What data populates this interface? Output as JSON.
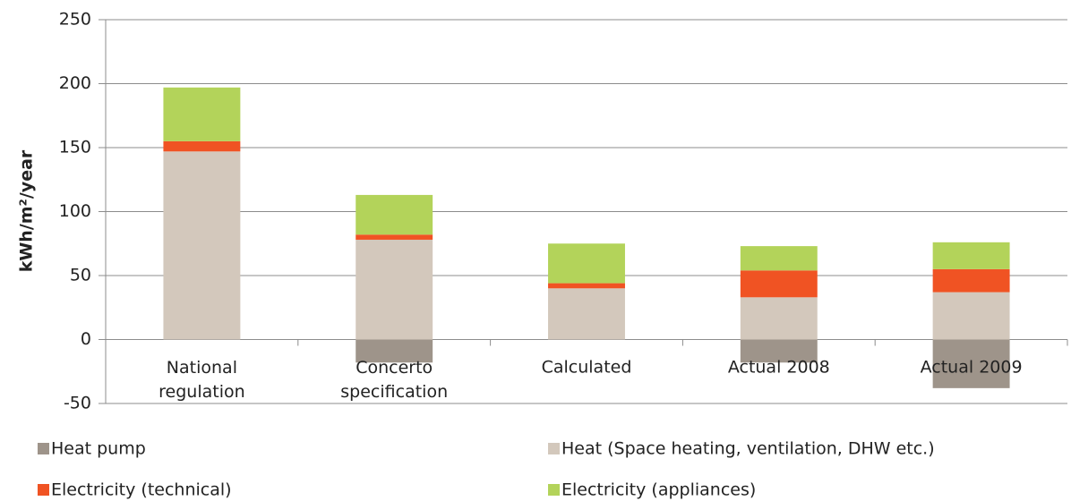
{
  "chart_data": {
    "type": "stacked_bar",
    "y_label": "kWh/m²/year",
    "categories": [
      "National regulation",
      "Concerto specification",
      "Calculated",
      "Actual 2008",
      "Actual 2009"
    ],
    "series": [
      {
        "name": "Heat pump",
        "color": "#9e948a",
        "values": [
          0,
          -18,
          0,
          -18,
          -38
        ]
      },
      {
        "name": "Heat (Space heating, ventilation, DHW etc.)",
        "color": "#d3c8bc",
        "values": [
          147,
          78,
          40,
          33,
          37
        ]
      },
      {
        "name": "Electricity (technical)",
        "color": "#f05323",
        "values": [
          8,
          4,
          4,
          21,
          18
        ]
      },
      {
        "name": "Electricity (appliances)",
        "color": "#b3d35a",
        "values": [
          42,
          31,
          31,
          19,
          21
        ]
      }
    ],
    "ylim": [
      -50,
      250
    ],
    "yticks": [
      -50,
      0,
      50,
      100,
      150,
      200,
      250
    ],
    "grid": true
  }
}
